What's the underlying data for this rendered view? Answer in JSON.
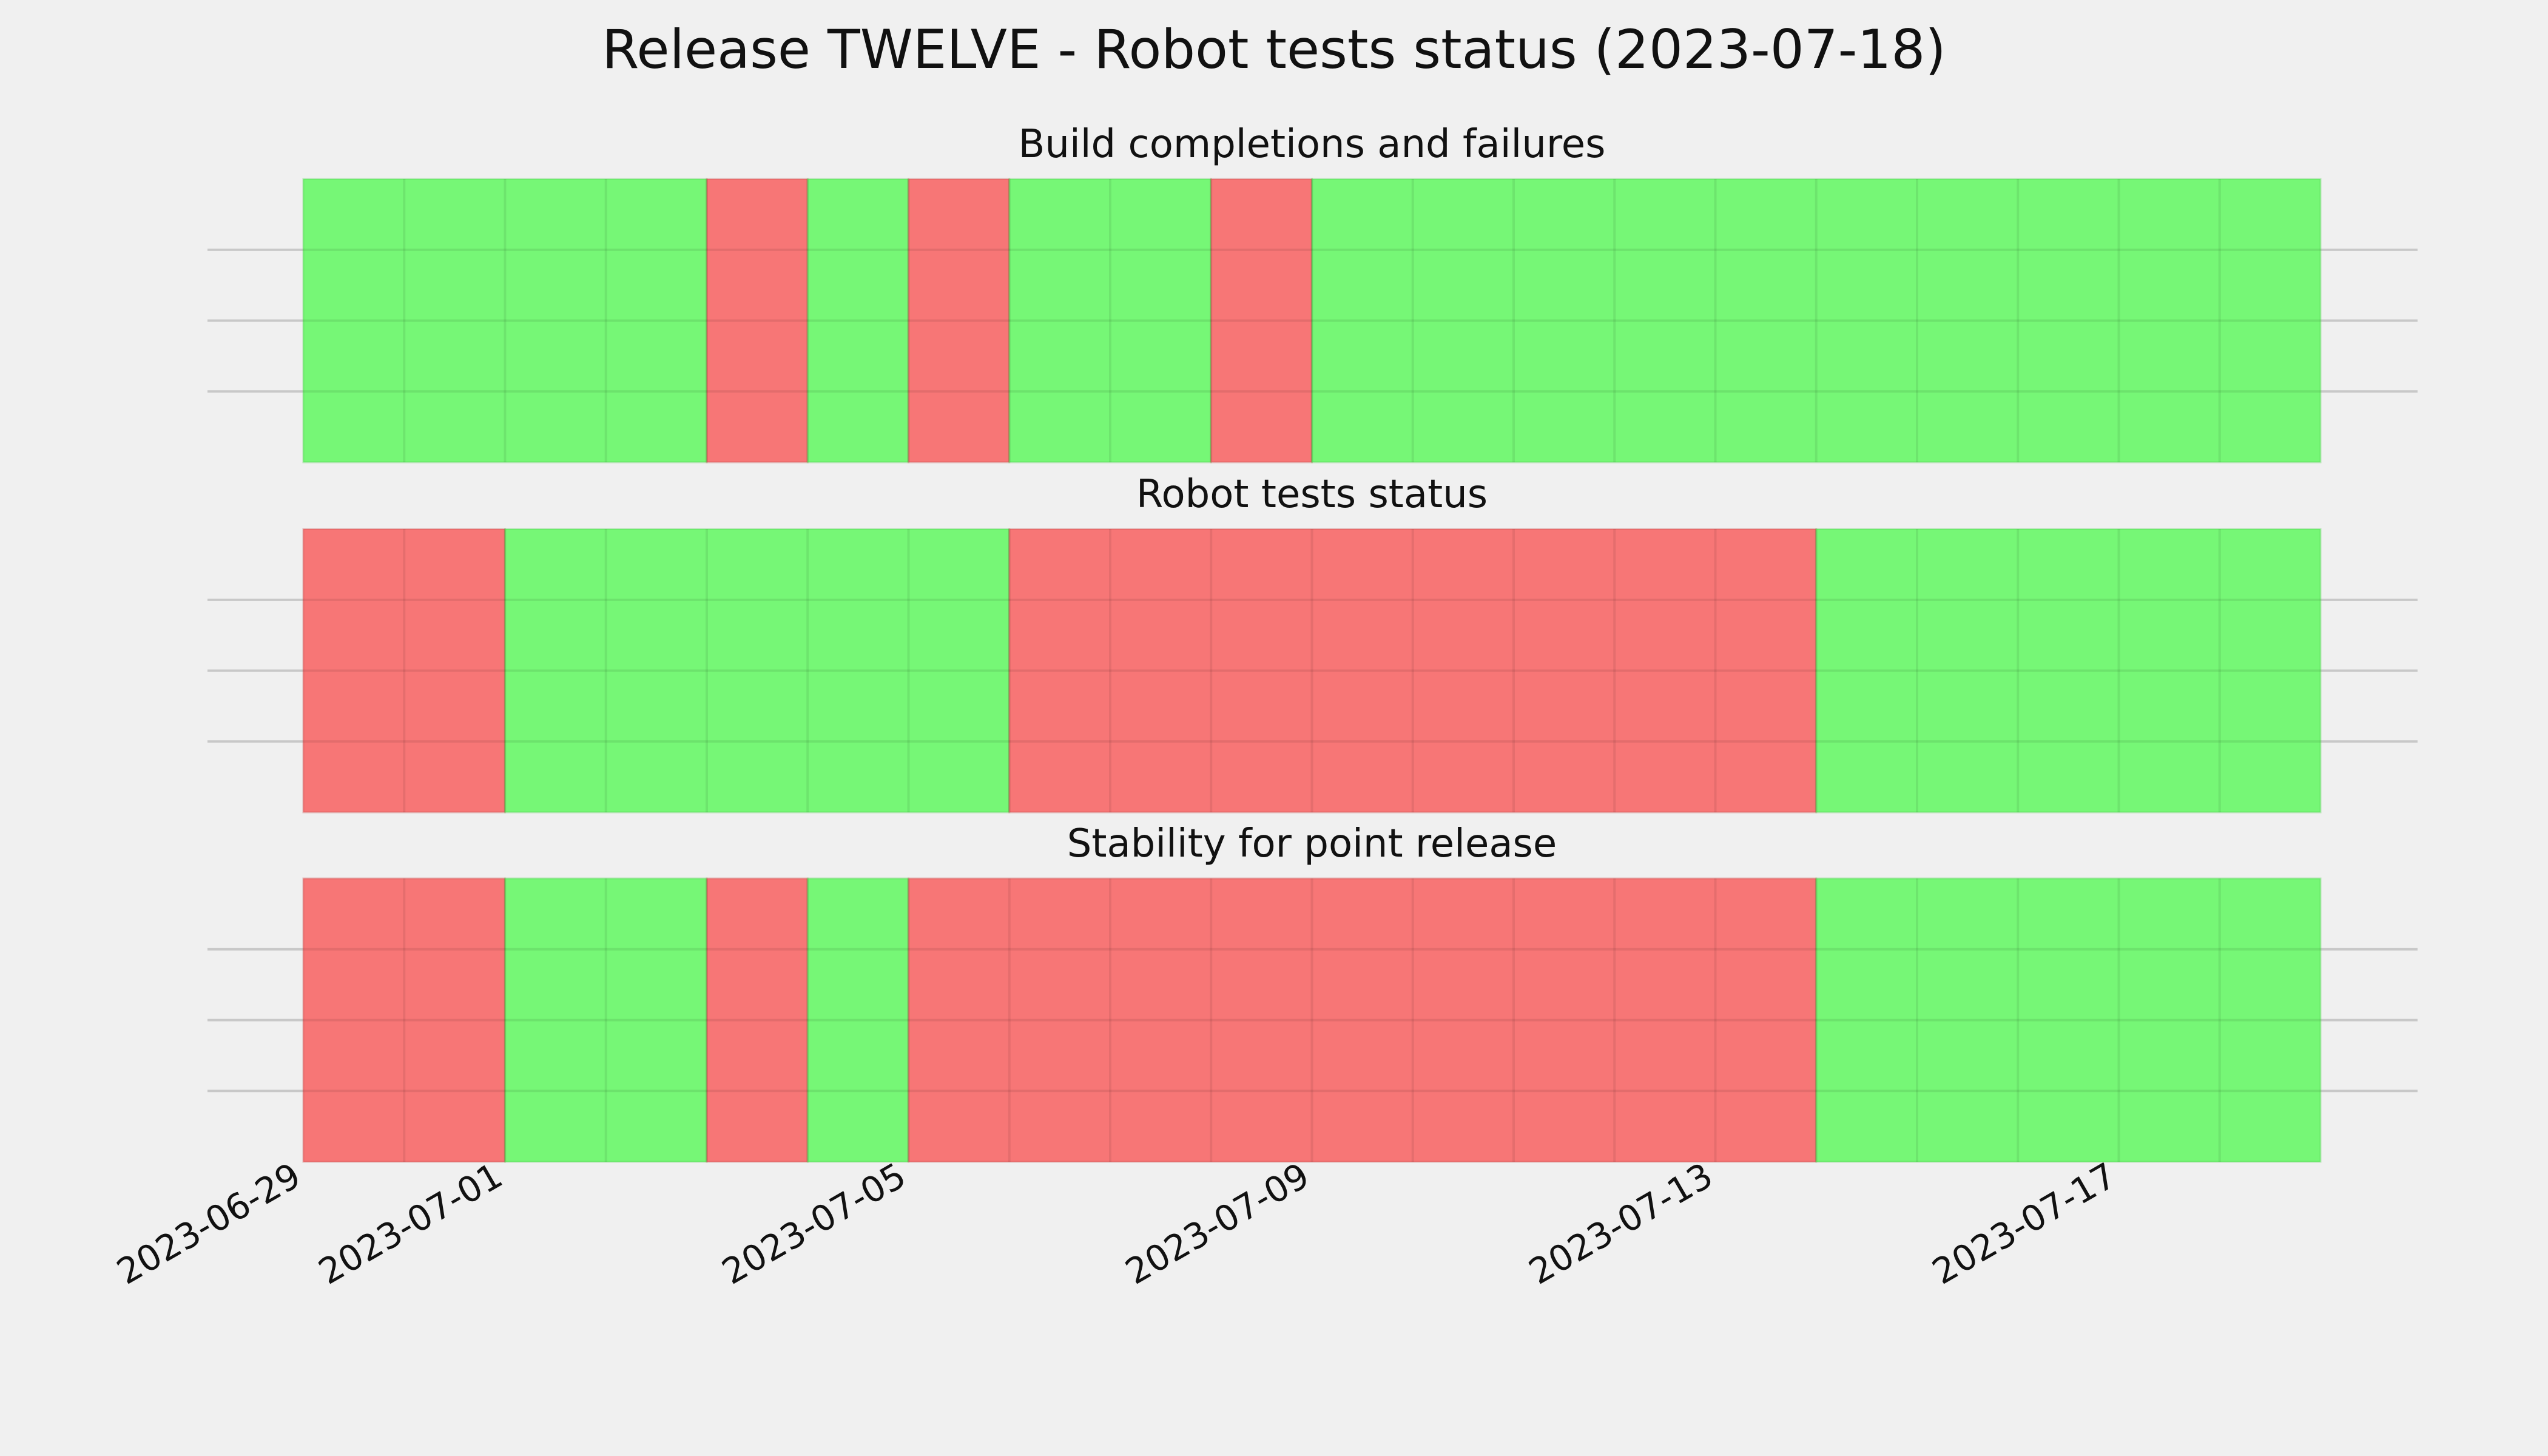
{
  "colors": {
    "background": "#f0f0f0",
    "pass": "#76f776",
    "fail": "#f77676",
    "pass_edge": "#4fcf4f",
    "fail_edge": "#c95050"
  },
  "chart_data": {
    "type": "timeline",
    "title": "Release TWELVE - Robot tests status (2023-07-18)",
    "x_range": [
      "2023-06-29",
      "2023-07-19"
    ],
    "x_ticks": [
      "2023-06-29",
      "2023-07-01",
      "2023-07-05",
      "2023-07-09",
      "2023-07-13",
      "2023-07-17"
    ],
    "grid": true,
    "panels": [
      {
        "title": "Build completions and failures",
        "segments": [
          {
            "start": "2023-06-29",
            "end": "2023-07-03",
            "status": "pass"
          },
          {
            "start": "2023-07-03",
            "end": "2023-07-04",
            "status": "fail"
          },
          {
            "start": "2023-07-04",
            "end": "2023-07-05",
            "status": "pass"
          },
          {
            "start": "2023-07-05",
            "end": "2023-07-06",
            "status": "fail"
          },
          {
            "start": "2023-07-06",
            "end": "2023-07-08",
            "status": "pass"
          },
          {
            "start": "2023-07-08",
            "end": "2023-07-09",
            "status": "fail"
          },
          {
            "start": "2023-07-09",
            "end": "2023-07-19",
            "status": "pass"
          }
        ]
      },
      {
        "title": "Robot tests status",
        "segments": [
          {
            "start": "2023-06-29",
            "end": "2023-07-01",
            "status": "fail"
          },
          {
            "start": "2023-07-01",
            "end": "2023-07-06",
            "status": "pass"
          },
          {
            "start": "2023-07-06",
            "end": "2023-07-14",
            "status": "fail"
          },
          {
            "start": "2023-07-14",
            "end": "2023-07-19",
            "status": "pass"
          }
        ]
      },
      {
        "title": "Stability for point release",
        "segments": [
          {
            "start": "2023-06-29",
            "end": "2023-07-01",
            "status": "fail"
          },
          {
            "start": "2023-07-01",
            "end": "2023-07-03",
            "status": "pass"
          },
          {
            "start": "2023-07-03",
            "end": "2023-07-04",
            "status": "fail"
          },
          {
            "start": "2023-07-04",
            "end": "2023-07-05",
            "status": "pass"
          },
          {
            "start": "2023-07-05",
            "end": "2023-07-14",
            "status": "fail"
          },
          {
            "start": "2023-07-14",
            "end": "2023-07-19",
            "status": "pass"
          }
        ]
      }
    ]
  }
}
